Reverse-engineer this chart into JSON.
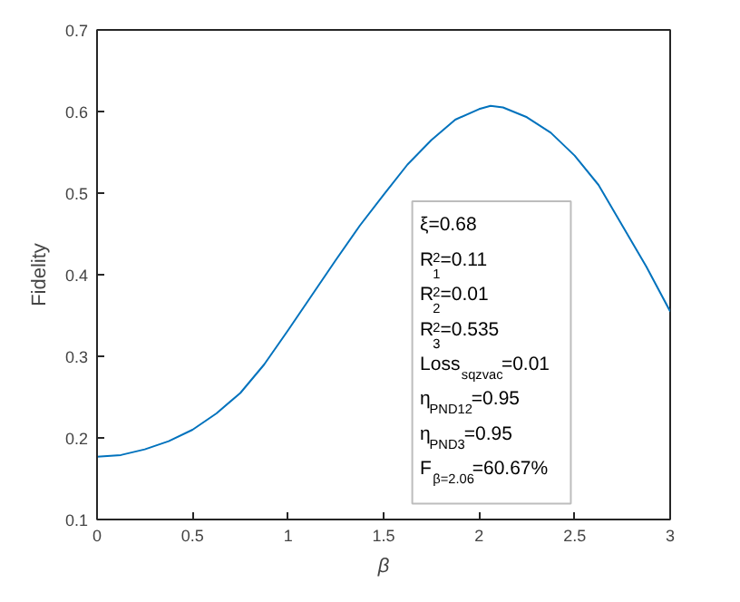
{
  "chart_data": {
    "type": "line",
    "xlabel": "β",
    "ylabel": "Fidelity",
    "x": [
      0,
      0.125,
      0.25,
      0.375,
      0.5,
      0.625,
      0.75,
      0.875,
      1.0,
      1.125,
      1.25,
      1.375,
      1.5,
      1.625,
      1.75,
      1.875,
      2.0,
      2.06,
      2.125,
      2.25,
      2.375,
      2.5,
      2.625,
      2.75,
      2.875,
      3.0
    ],
    "series": [
      {
        "color": "#0072bd",
        "values": [
          0.177,
          0.179,
          0.186,
          0.196,
          0.21,
          0.23,
          0.255,
          0.29,
          0.332,
          0.375,
          0.418,
          0.46,
          0.498,
          0.535,
          0.565,
          0.59,
          0.603,
          0.607,
          0.605,
          0.593,
          0.574,
          0.546,
          0.51,
          0.46,
          0.41,
          0.355
        ]
      }
    ],
    "xlim": [
      0,
      3
    ],
    "xticks": [
      0,
      0.5,
      1,
      1.5,
      2,
      2.5,
      3
    ],
    "ylim": [
      0.1,
      0.7
    ],
    "yticks": [
      0.1,
      0.2,
      0.3,
      0.4,
      0.5,
      0.6,
      0.7
    ],
    "grid": false,
    "marker": "none",
    "line_style": "solid",
    "annotations": [
      "ξ=0.68",
      "R$^{2}$$_{1}$=0.11",
      "R$^{2}$$_{2}$=0.01",
      "R$^{2}$$_{3}$=0.535",
      "Loss$_{sqzvac}$=0.01",
      "η$_{PND12}$=0.95",
      "η$_{PND3}$=0.95",
      "F$_{β=2.06}$=60.67%"
    ]
  }
}
